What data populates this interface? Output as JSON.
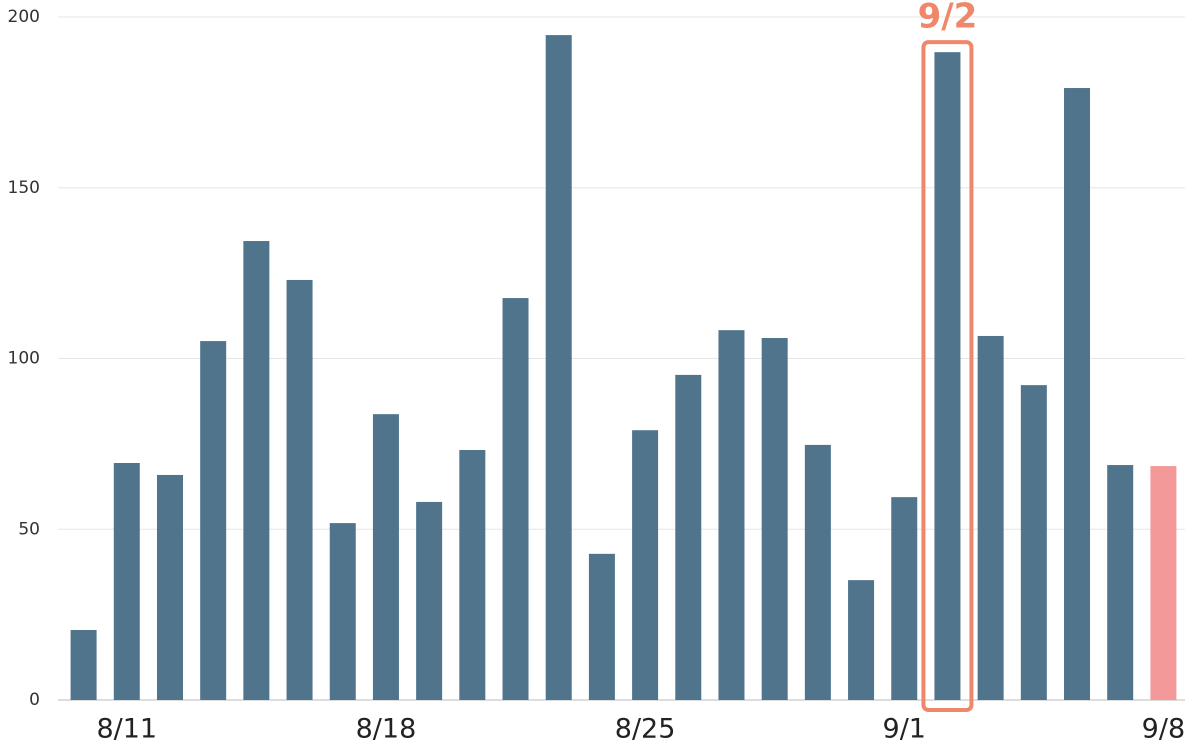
{
  "chart_data": {
    "type": "bar",
    "categories": [
      null,
      "8/11",
      null,
      null,
      null,
      null,
      null,
      "8/18",
      null,
      null,
      null,
      null,
      null,
      "8/25",
      null,
      null,
      null,
      null,
      null,
      "9/1",
      null,
      null,
      null,
      null,
      null,
      "9/8"
    ],
    "values": [
      20.5,
      69.4,
      65.9,
      105.1,
      134.4,
      123,
      51.8,
      83.7,
      58,
      73.2,
      117.7,
      194.7,
      42.8,
      79,
      95.2,
      108.3,
      106,
      74.7,
      35.1,
      59.4,
      189.7,
      106.6,
      92.2,
      179.2,
      68.8,
      68.5
    ],
    "colors": [
      "#4f748c",
      "#4f748c",
      "#4f748c",
      "#4f748c",
      "#4f748c",
      "#4f748c",
      "#4f748c",
      "#4f748c",
      "#4f748c",
      "#4f748c",
      "#4f748c",
      "#4f748c",
      "#4f748c",
      "#4f748c",
      "#4f748c",
      "#4f748c",
      "#4f748c",
      "#4f748c",
      "#4f748c",
      "#4f748c",
      "#4f748c",
      "#4f748c",
      "#4f748c",
      "#4f748c",
      "#4f748c",
      "#f4999a"
    ],
    "ylim": [
      0,
      200
    ],
    "yticks": [
      0,
      50,
      100,
      150,
      200
    ],
    "grid": true,
    "highlight": {
      "index": 20,
      "label": "9/2",
      "color": "#f0876a"
    }
  }
}
